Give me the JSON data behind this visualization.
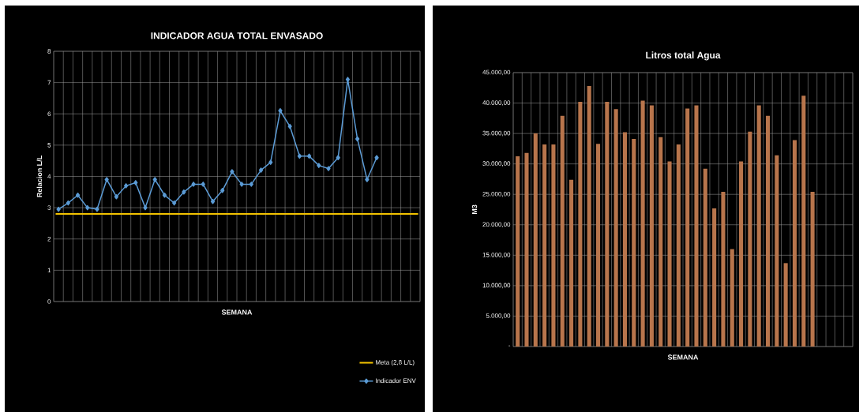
{
  "chart_data": [
    {
      "type": "line",
      "title": "INDICADOR AGUA TOTAL ENVASADO",
      "xlabel": "SEMANA",
      "ylabel": "Relacion L/L",
      "categories": [
        null,
        null,
        null,
        null,
        null,
        null,
        null,
        null,
        null,
        null,
        null,
        null,
        null,
        null,
        null,
        null,
        null,
        null,
        null,
        null,
        null,
        null,
        null,
        null,
        null,
        null,
        null,
        null,
        null,
        null,
        null,
        null,
        null,
        null,
        null,
        null,
        null,
        null
      ],
      "series": [
        {
          "name": "Indicador ENV",
          "color": "#5b9bd5",
          "values": [
            2.95,
            3.15,
            3.4,
            3.0,
            2.95,
            3.9,
            3.35,
            3.7,
            3.8,
            3.0,
            3.9,
            3.4,
            3.15,
            3.5,
            3.75,
            3.75,
            3.2,
            3.55,
            4.15,
            3.75,
            3.75,
            4.2,
            4.45,
            6.1,
            5.6,
            4.65,
            4.65,
            4.35,
            4.25,
            4.6,
            7.1,
            5.2,
            3.9,
            4.6,
            null,
            null,
            null,
            null
          ]
        }
      ],
      "ref_lines": [
        {
          "axis": "y",
          "value": 2.8,
          "label": "Meta (2,8 L/L)",
          "color": "#f2c200"
        }
      ],
      "ylim": [
        0,
        8
      ],
      "yticks": [
        0,
        1,
        2,
        3,
        4,
        5,
        6,
        7,
        8
      ],
      "grid": true,
      "legend": "bottom right",
      "marker": "diamond",
      "line_style": "solid"
    },
    {
      "type": "bar",
      "title": "Litros total Agua",
      "xlabel": "SEMANA",
      "ylabel": "M3",
      "categories": [
        null,
        null,
        null,
        null,
        null,
        null,
        null,
        null,
        null,
        null,
        null,
        null,
        null,
        null,
        null,
        null,
        null,
        null,
        null,
        null,
        null,
        null,
        null,
        null,
        null,
        null,
        null,
        null,
        null,
        null,
        null,
        null,
        null,
        null,
        null,
        null,
        null,
        null
      ],
      "series": [
        {
          "color": "#b8754c",
          "values": [
            31250,
            31800,
            35000,
            33200,
            33200,
            37900,
            27400,
            40200,
            42800,
            33300,
            40200,
            39000,
            35200,
            34100,
            40400,
            39600,
            34400,
            30400,
            33200,
            39100,
            39600,
            29200,
            22700,
            25400,
            16000,
            30400,
            35300,
            39600,
            37900,
            31400,
            13700,
            33900,
            41200,
            25400,
            null,
            null,
            null,
            null
          ]
        }
      ],
      "ylim": [
        0,
        45000
      ],
      "yticks": [
        {
          "value": 0,
          "label": "-"
        },
        {
          "value": 5000,
          "label": "5.000,00"
        },
        {
          "value": 10000,
          "label": "10.000,00"
        },
        {
          "value": 15000,
          "label": "15.000,00"
        },
        {
          "value": 20000,
          "label": "20.000,00"
        },
        {
          "value": 25000,
          "label": "25.000,00"
        },
        {
          "value": 30000,
          "label": "30.000,00"
        },
        {
          "value": 35000,
          "label": "35.000,00"
        },
        {
          "value": 40000,
          "label": "40.000,00"
        },
        {
          "value": 45000,
          "label": "45.000,00"
        }
      ],
      "grid": true,
      "legend": false
    }
  ]
}
